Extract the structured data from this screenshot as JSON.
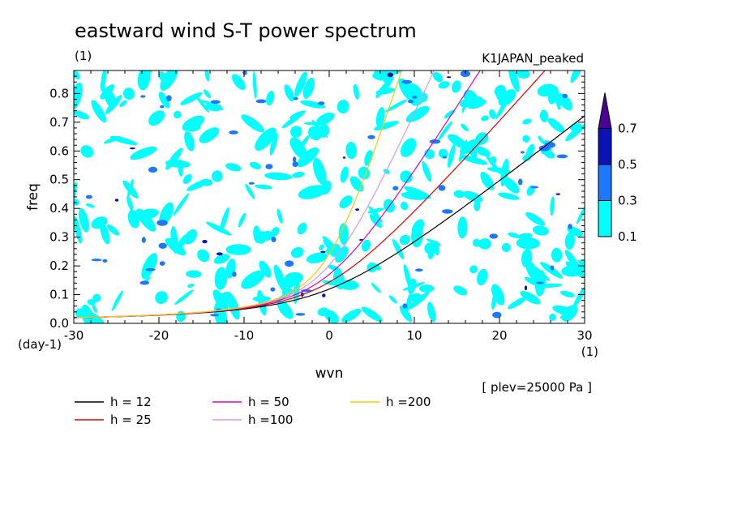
{
  "chart_data": {
    "type": "heatmap",
    "title": "eastward wind S-T power spectrum",
    "units_label": "(1)",
    "model_label": "K1JAPAN_peaked",
    "xlabel": "wvn",
    "ylabel": "freq",
    "x_units": "(1)",
    "y_units": "(day-1)",
    "xlim": [
      -30,
      30
    ],
    "ylim": [
      0,
      0.88
    ],
    "x_ticks": [
      "-30",
      "-20",
      "-10",
      "0",
      "10",
      "20",
      "30"
    ],
    "y_ticks": [
      "0.0",
      "0.1",
      "0.2",
      "0.3",
      "0.4",
      "0.5",
      "0.6",
      "0.7",
      "0.8"
    ],
    "plev_label": "[ plev=25000 Pa ]",
    "colorbar": {
      "levels": [
        "0.1",
        "0.3",
        "0.5",
        "0.7"
      ],
      "colors": [
        "#00ffff",
        "#1e78ff",
        "#0a14b4",
        "#4b0096"
      ]
    },
    "dispersion_curves": [
      {
        "label": "h = 12",
        "h": 12,
        "color": "#000000"
      },
      {
        "label": "h = 25",
        "h": 25,
        "color": "#e00000"
      },
      {
        "label": "h = 50",
        "h": 50,
        "color": "#e000c0"
      },
      {
        "label": "h =100",
        "h": 100,
        "color": "#d898e0"
      },
      {
        "label": "h =200",
        "h": 200,
        "color": "#ffc800"
      }
    ]
  }
}
